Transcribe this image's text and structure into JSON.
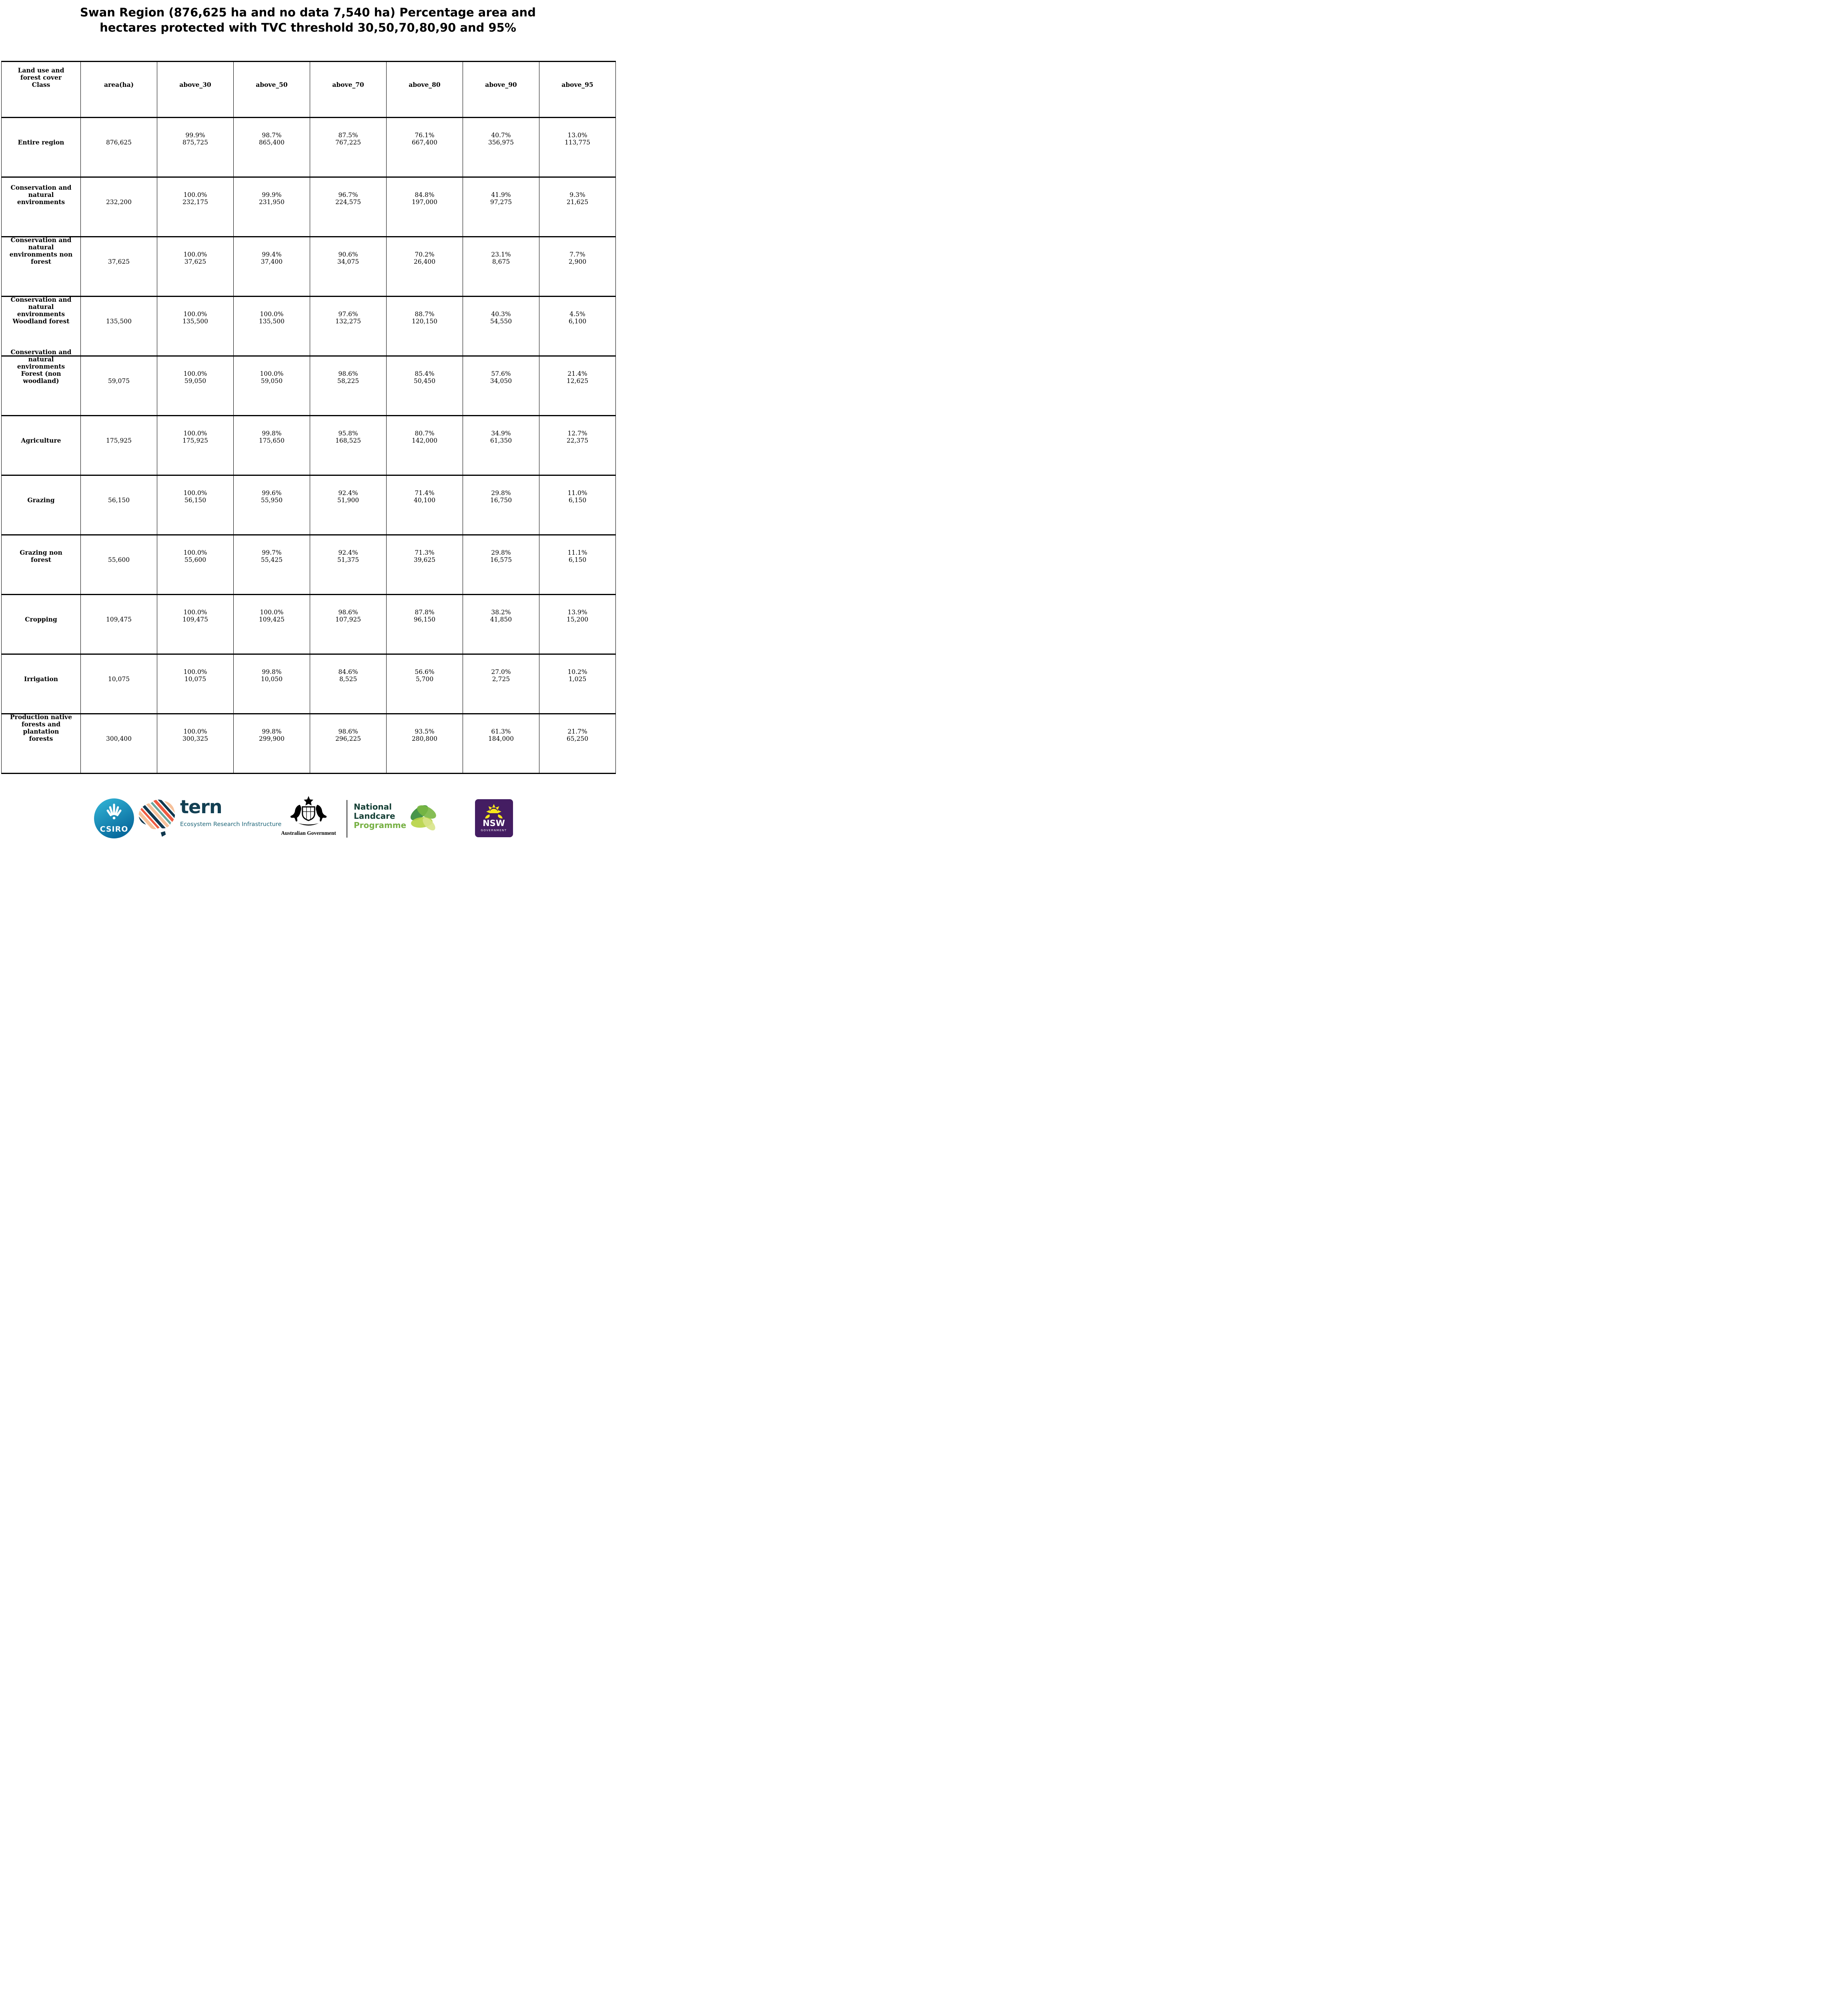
{
  "title": "Swan Region (876,625 ha and no data 7,540 ha) Percentage area and\nhectares protected with TVC threshold 30,50,70,80,90 and 95%",
  "chart_data": {
    "type": "table",
    "title": "Swan Region (876,625 ha and no data 7,540 ha) Percentage area and hectares protected with TVC threshold 30,50,70,80,90 and 95%",
    "columns": [
      "Land use and\nforest cover\nClass",
      "area(ha)",
      "above_30",
      "above_50",
      "above_70",
      "above_80",
      "above_90",
      "above_95"
    ],
    "rows": [
      {
        "label": "Entire region",
        "area_ha": "876,625",
        "values": [
          {
            "pct": "99.9%",
            "ha": "875,725"
          },
          {
            "pct": "98.7%",
            "ha": "865,400"
          },
          {
            "pct": "87.5%",
            "ha": "767,225"
          },
          {
            "pct": "76.1%",
            "ha": "667,400"
          },
          {
            "pct": "40.7%",
            "ha": "356,975"
          },
          {
            "pct": "13.0%",
            "ha": "113,775"
          }
        ]
      },
      {
        "label": "Conservation and\nnatural\nenvironments",
        "area_ha": "232,200",
        "values": [
          {
            "pct": "100.0%",
            "ha": "232,175"
          },
          {
            "pct": "99.9%",
            "ha": "231,950"
          },
          {
            "pct": "96.7%",
            "ha": "224,575"
          },
          {
            "pct": "84.8%",
            "ha": "197,000"
          },
          {
            "pct": "41.9%",
            "ha": "97,275"
          },
          {
            "pct": "9.3%",
            "ha": "21,625"
          }
        ]
      },
      {
        "label": "Conservation and\nnatural\nenvironments non\nforest",
        "area_ha": "37,625",
        "values": [
          {
            "pct": "100.0%",
            "ha": "37,625"
          },
          {
            "pct": "99.4%",
            "ha": "37,400"
          },
          {
            "pct": "90.6%",
            "ha": "34,075"
          },
          {
            "pct": "70.2%",
            "ha": "26,400"
          },
          {
            "pct": "23.1%",
            "ha": "8,675"
          },
          {
            "pct": "7.7%",
            "ha": "2,900"
          }
        ]
      },
      {
        "label": "Conservation and\nnatural\nenvironments\nWoodland forest",
        "area_ha": "135,500",
        "values": [
          {
            "pct": "100.0%",
            "ha": "135,500"
          },
          {
            "pct": "100.0%",
            "ha": "135,500"
          },
          {
            "pct": "97.6%",
            "ha": "132,275"
          },
          {
            "pct": "88.7%",
            "ha": "120,150"
          },
          {
            "pct": "40.3%",
            "ha": "54,550"
          },
          {
            "pct": "4.5%",
            "ha": "6,100"
          }
        ]
      },
      {
        "label": "Conservation and\nnatural\nenvironments\nForest (non\nwoodland)",
        "area_ha": "59,075",
        "values": [
          {
            "pct": "100.0%",
            "ha": "59,050"
          },
          {
            "pct": "100.0%",
            "ha": "59,050"
          },
          {
            "pct": "98.6%",
            "ha": "58,225"
          },
          {
            "pct": "85.4%",
            "ha": "50,450"
          },
          {
            "pct": "57.6%",
            "ha": "34,050"
          },
          {
            "pct": "21.4%",
            "ha": "12,625"
          }
        ]
      },
      {
        "label": "Agriculture",
        "area_ha": "175,925",
        "values": [
          {
            "pct": "100.0%",
            "ha": "175,925"
          },
          {
            "pct": "99.8%",
            "ha": "175,650"
          },
          {
            "pct": "95.8%",
            "ha": "168,525"
          },
          {
            "pct": "80.7%",
            "ha": "142,000"
          },
          {
            "pct": "34.9%",
            "ha": "61,350"
          },
          {
            "pct": "12.7%",
            "ha": "22,375"
          }
        ]
      },
      {
        "label": "Grazing",
        "area_ha": "56,150",
        "values": [
          {
            "pct": "100.0%",
            "ha": "56,150"
          },
          {
            "pct": "99.6%",
            "ha": "55,950"
          },
          {
            "pct": "92.4%",
            "ha": "51,900"
          },
          {
            "pct": "71.4%",
            "ha": "40,100"
          },
          {
            "pct": "29.8%",
            "ha": "16,750"
          },
          {
            "pct": "11.0%",
            "ha": "6,150"
          }
        ]
      },
      {
        "label": "Grazing non\nforest",
        "area_ha": "55,600",
        "values": [
          {
            "pct": "100.0%",
            "ha": "55,600"
          },
          {
            "pct": "99.7%",
            "ha": "55,425"
          },
          {
            "pct": "92.4%",
            "ha": "51,375"
          },
          {
            "pct": "71.3%",
            "ha": "39,625"
          },
          {
            "pct": "29.8%",
            "ha": "16,575"
          },
          {
            "pct": "11.1%",
            "ha": "6,150"
          }
        ]
      },
      {
        "label": "Cropping",
        "area_ha": "109,475",
        "values": [
          {
            "pct": "100.0%",
            "ha": "109,475"
          },
          {
            "pct": "100.0%",
            "ha": "109,425"
          },
          {
            "pct": "98.6%",
            "ha": "107,925"
          },
          {
            "pct": "87.8%",
            "ha": "96,150"
          },
          {
            "pct": "38.2%",
            "ha": "41,850"
          },
          {
            "pct": "13.9%",
            "ha": "15,200"
          }
        ]
      },
      {
        "label": "Irrigation",
        "area_ha": "10,075",
        "values": [
          {
            "pct": "100.0%",
            "ha": "10,075"
          },
          {
            "pct": "99.8%",
            "ha": "10,050"
          },
          {
            "pct": "84.6%",
            "ha": "8,525"
          },
          {
            "pct": "56.6%",
            "ha": "5,700"
          },
          {
            "pct": "27.0%",
            "ha": "2,725"
          },
          {
            "pct": "10.2%",
            "ha": "1,025"
          }
        ]
      },
      {
        "label": "Production native\nforests and\nplantation\nforests",
        "area_ha": "300,400",
        "values": [
          {
            "pct": "100.0%",
            "ha": "300,325"
          },
          {
            "pct": "99.8%",
            "ha": "299,900"
          },
          {
            "pct": "98.6%",
            "ha": "296,225"
          },
          {
            "pct": "93.5%",
            "ha": "280,800"
          },
          {
            "pct": "61.3%",
            "ha": "184,000"
          },
          {
            "pct": "21.7%",
            "ha": "65,250"
          }
        ]
      }
    ]
  },
  "footer": {
    "csiro": {
      "label": "CSIRO"
    },
    "tern": {
      "wordmark": "tern",
      "tagline": "Ecosystem Research Infrastructure"
    },
    "australian_government": {
      "label": "Australian Government"
    },
    "landcare": {
      "line1": "National",
      "line2": "Landcare",
      "line3": "Programme"
    },
    "nsw": {
      "label": "NSW",
      "sublabel": "GOVERNMENT"
    }
  },
  "colors": {
    "csiro_gradient_start": "#35b8d9",
    "csiro_gradient_end": "#086a9d",
    "tern_dark": "#123f52",
    "tern_teal": "#1d6578",
    "tern_orange": "#ef5b41",
    "tern_peach": "#f6c19b",
    "tern_sage": "#6aa79d",
    "landcare_dark": "#143f35",
    "landcare_green": "#76b043",
    "nsw_purple": "#441d62",
    "nsw_yellow": "#f7e71b",
    "text": "#000000",
    "background": "#ffffff"
  }
}
